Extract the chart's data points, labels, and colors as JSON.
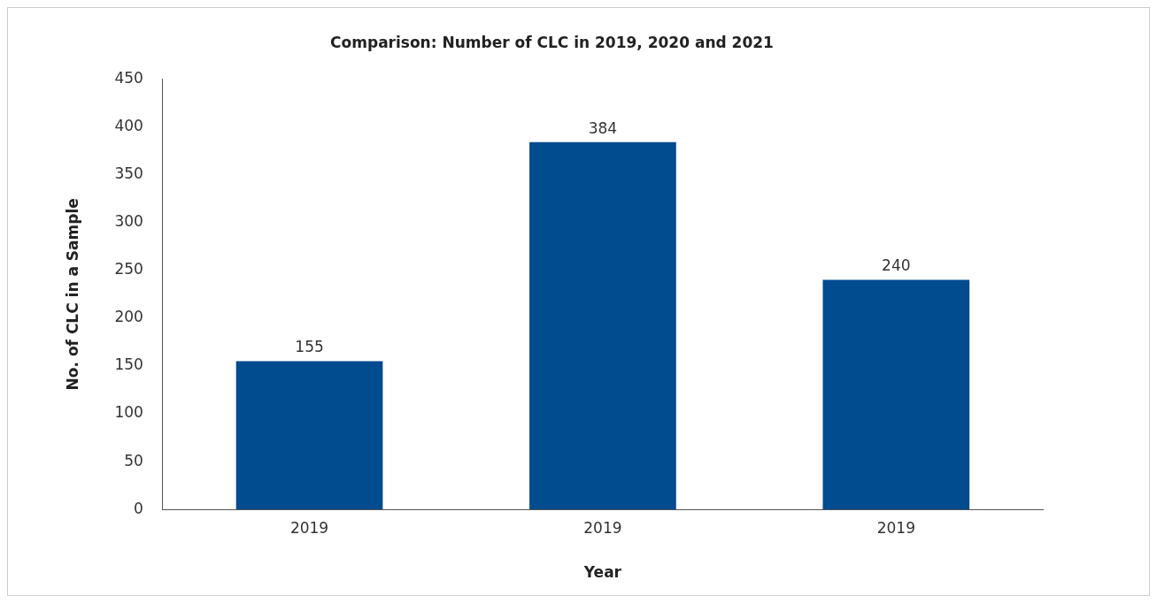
{
  "chart_data": {
    "type": "bar",
    "title": "Comparison: Number of CLC in 2019, 2020 and 2021",
    "xlabel": "Year",
    "ylabel": "No. of CLC in a Sample",
    "categories": [
      "2019",
      "2019",
      "2019"
    ],
    "values": [
      155,
      384,
      240
    ],
    "color": "#014b8f",
    "ylim": [
      0,
      450
    ],
    "yticks": [
      0,
      50,
      100,
      150,
      200,
      250,
      300,
      350,
      400,
      450
    ],
    "data_labels": true,
    "grid": false,
    "legend": false
  }
}
